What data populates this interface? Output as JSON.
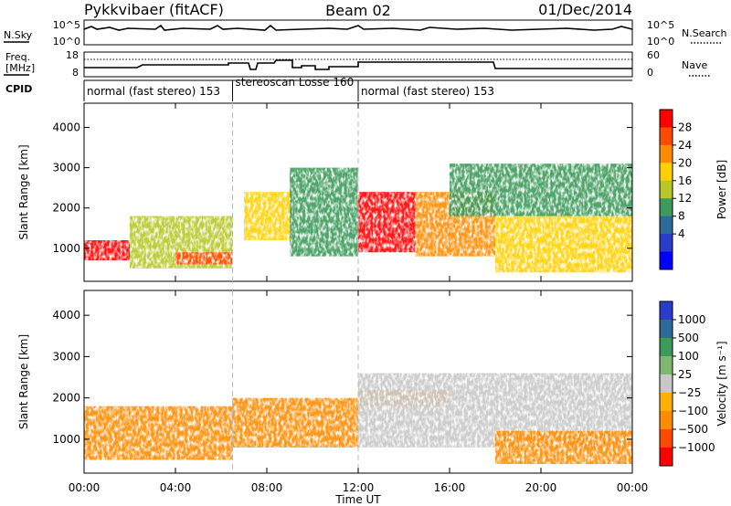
{
  "header": {
    "station": "Pykkvibaer (fitACF)",
    "beam": "Beam 02",
    "date": "01/Dec/2014"
  },
  "status": {
    "nsky_label": "N.Sky",
    "nsearch_label": "N.Search",
    "nave_label": "Nave",
    "freq_label_1": "Freq.",
    "freq_label_2": "[MHz]",
    "cpid_label": "CPID",
    "nsky_ticks": [
      "10^5",
      "10^0"
    ],
    "nsearch_ticks": [
      "10^5",
      "10^0"
    ],
    "freq_ticks": [
      "18",
      "8"
    ],
    "nave_ticks": [
      "60",
      "0"
    ]
  },
  "cpid_segments": [
    {
      "label": "normal (fast stereo) 153",
      "start_h": 0,
      "end_h": 6.5
    },
    {
      "label": "stereoscan Losse 160",
      "start_h": 6.5,
      "end_h": 12
    },
    {
      "label": "normal (fast stereo) 153",
      "start_h": 12,
      "end_h": 24
    }
  ],
  "chart_data": [
    {
      "type": "heatmap",
      "name": "power",
      "xlabel": "Time UT",
      "ylabel": "Slant Range [km]",
      "xlim": [
        0,
        24
      ],
      "ylim": [
        180,
        4600
      ],
      "x_ticks": [
        "00:00",
        "04:00",
        "08:00",
        "12:00",
        "16:00",
        "20:00",
        "00:00"
      ],
      "y_ticks": [
        1000,
        2000,
        3000,
        4000
      ],
      "colorbar": {
        "label": "Power [dB]",
        "ticks": [
          "28",
          "24",
          "20",
          "16",
          "12",
          "8",
          "4"
        ],
        "colors": [
          "#ff0000",
          "#ff4a00",
          "#ff8c00",
          "#ffd000",
          "#b8c828",
          "#3c9a5a",
          "#2e6a9a",
          "#2a3cc8",
          "#0000ff"
        ]
      },
      "regions": [
        {
          "t0": 0.0,
          "t1": 2.0,
          "r0": 700,
          "r1": 1200,
          "value": 28
        },
        {
          "t0": 2.0,
          "t1": 6.5,
          "r0": 500,
          "r1": 1800,
          "value": 14
        },
        {
          "t0": 4.0,
          "t1": 6.5,
          "r0": 600,
          "r1": 900,
          "value": 27
        },
        {
          "t0": 7.0,
          "t1": 9.0,
          "r0": 1200,
          "r1": 2400,
          "value": 16
        },
        {
          "t0": 9.0,
          "t1": 12.0,
          "r0": 800,
          "r1": 3000,
          "value": 10
        },
        {
          "t0": 12.0,
          "t1": 14.5,
          "r0": 900,
          "r1": 2400,
          "value": 28
        },
        {
          "t0": 14.5,
          "t1": 18.0,
          "r0": 800,
          "r1": 2400,
          "value": 22
        },
        {
          "t0": 18.0,
          "t1": 24.0,
          "r0": 400,
          "r1": 1800,
          "value": 18
        },
        {
          "t0": 16.0,
          "t1": 24.0,
          "r0": 1800,
          "r1": 3100,
          "value": 8
        }
      ]
    },
    {
      "type": "heatmap",
      "name": "velocity",
      "xlabel": "Time UT",
      "ylabel": "Slant Range [km]",
      "xlim": [
        0,
        24
      ],
      "ylim": [
        180,
        4600
      ],
      "x_ticks": [
        "00:00",
        "04:00",
        "08:00",
        "12:00",
        "16:00",
        "20:00",
        "00:00"
      ],
      "y_ticks": [
        1000,
        2000,
        3000,
        4000
      ],
      "colorbar": {
        "label": "Velocity [m s⁻¹]",
        "ticks": [
          "1000",
          "500",
          "100",
          "25",
          "−25",
          "−100",
          "−500",
          "−1000"
        ],
        "colors": [
          "#2a3cc8",
          "#2e6a9a",
          "#3c9a5a",
          "#80b870",
          "#c8c8c8",
          "#ffb000",
          "#ff8c00",
          "#ff4a00",
          "#ff0000"
        ]
      },
      "regions": [
        {
          "t0": 0.0,
          "t1": 6.5,
          "r0": 500,
          "r1": 1800,
          "value": -300
        },
        {
          "t0": 6.5,
          "t1": 12.0,
          "r0": 800,
          "r1": 2000,
          "value": -500
        },
        {
          "t0": 12.0,
          "t1": 16.0,
          "r0": 1800,
          "r1": 2200,
          "value": -400
        },
        {
          "t0": 12.0,
          "t1": 24.0,
          "r0": 800,
          "r1": 2600,
          "value": 0
        },
        {
          "t0": 18.0,
          "t1": 24.0,
          "r0": 400,
          "r1": 1200,
          "value": -200
        }
      ]
    }
  ]
}
